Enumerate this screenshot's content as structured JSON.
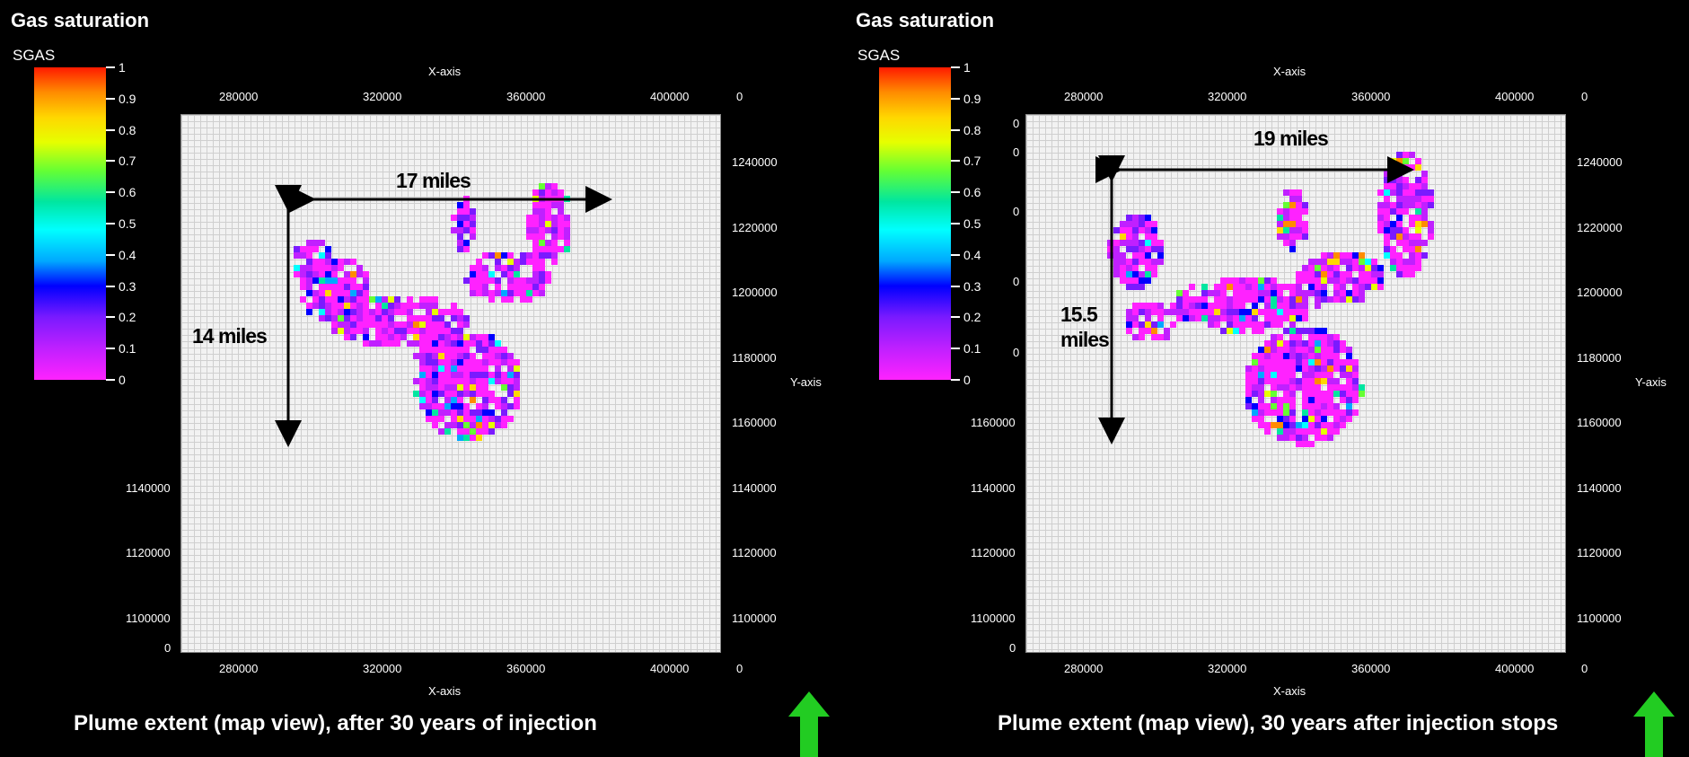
{
  "chart_data": [
    {
      "type": "heatmap",
      "title": "Gas saturation",
      "colorbar_label": "SGAS",
      "colorbar_ticks": [
        "1",
        "0.9",
        "0.8",
        "0.7",
        "0.6",
        "0.5",
        "0.4",
        "0.3",
        "0.2",
        "0.1",
        "0"
      ],
      "xlabel": "X-axis",
      "ylabel": "Y-axis",
      "x_ticks": [
        "280000",
        "320000",
        "360000",
        "400000"
      ],
      "x_zero": "0",
      "y_ticks": [
        "1240000",
        "1220000",
        "1200000",
        "1180000",
        "1160000",
        "1140000",
        "1120000",
        "1100000"
      ],
      "y_zero": "0",
      "xlim": [
        263000,
        413000
      ],
      "ylim": [
        1090000,
        1255000
      ],
      "width_annotation": "17 miles",
      "height_annotation": "14 miles",
      "caption": "Plume extent (map view), after 30 years of injection"
    },
    {
      "type": "heatmap",
      "title": "Gas saturation",
      "colorbar_label": "SGAS",
      "colorbar_ticks": [
        "1",
        "0.9",
        "0.8",
        "0.7",
        "0.6",
        "0.5",
        "0.4",
        "0.3",
        "0.2",
        "0.1",
        "0"
      ],
      "xlabel": "X-axis",
      "ylabel": "Y-axis",
      "x_ticks": [
        "280000",
        "320000",
        "360000",
        "400000"
      ],
      "x_zero": "0",
      "y_ticks": [
        "1240000",
        "1220000",
        "1200000",
        "1180000",
        "1160000",
        "1140000",
        "1120000",
        "1100000"
      ],
      "y_zero": "0",
      "left_zero_ticks": [
        "0",
        "0",
        "0",
        "0",
        "0",
        "0"
      ],
      "xlim": [
        263000,
        413000
      ],
      "ylim": [
        1090000,
        1255000
      ],
      "width_annotation": "19 miles",
      "height_annotation": "15.5 miles",
      "caption": "Plume extent (map view), 30 years after injection stops"
    }
  ],
  "colors": {
    "background": "#000000",
    "grid": "#cfcfcf",
    "arrow_green": "#22cc22"
  }
}
